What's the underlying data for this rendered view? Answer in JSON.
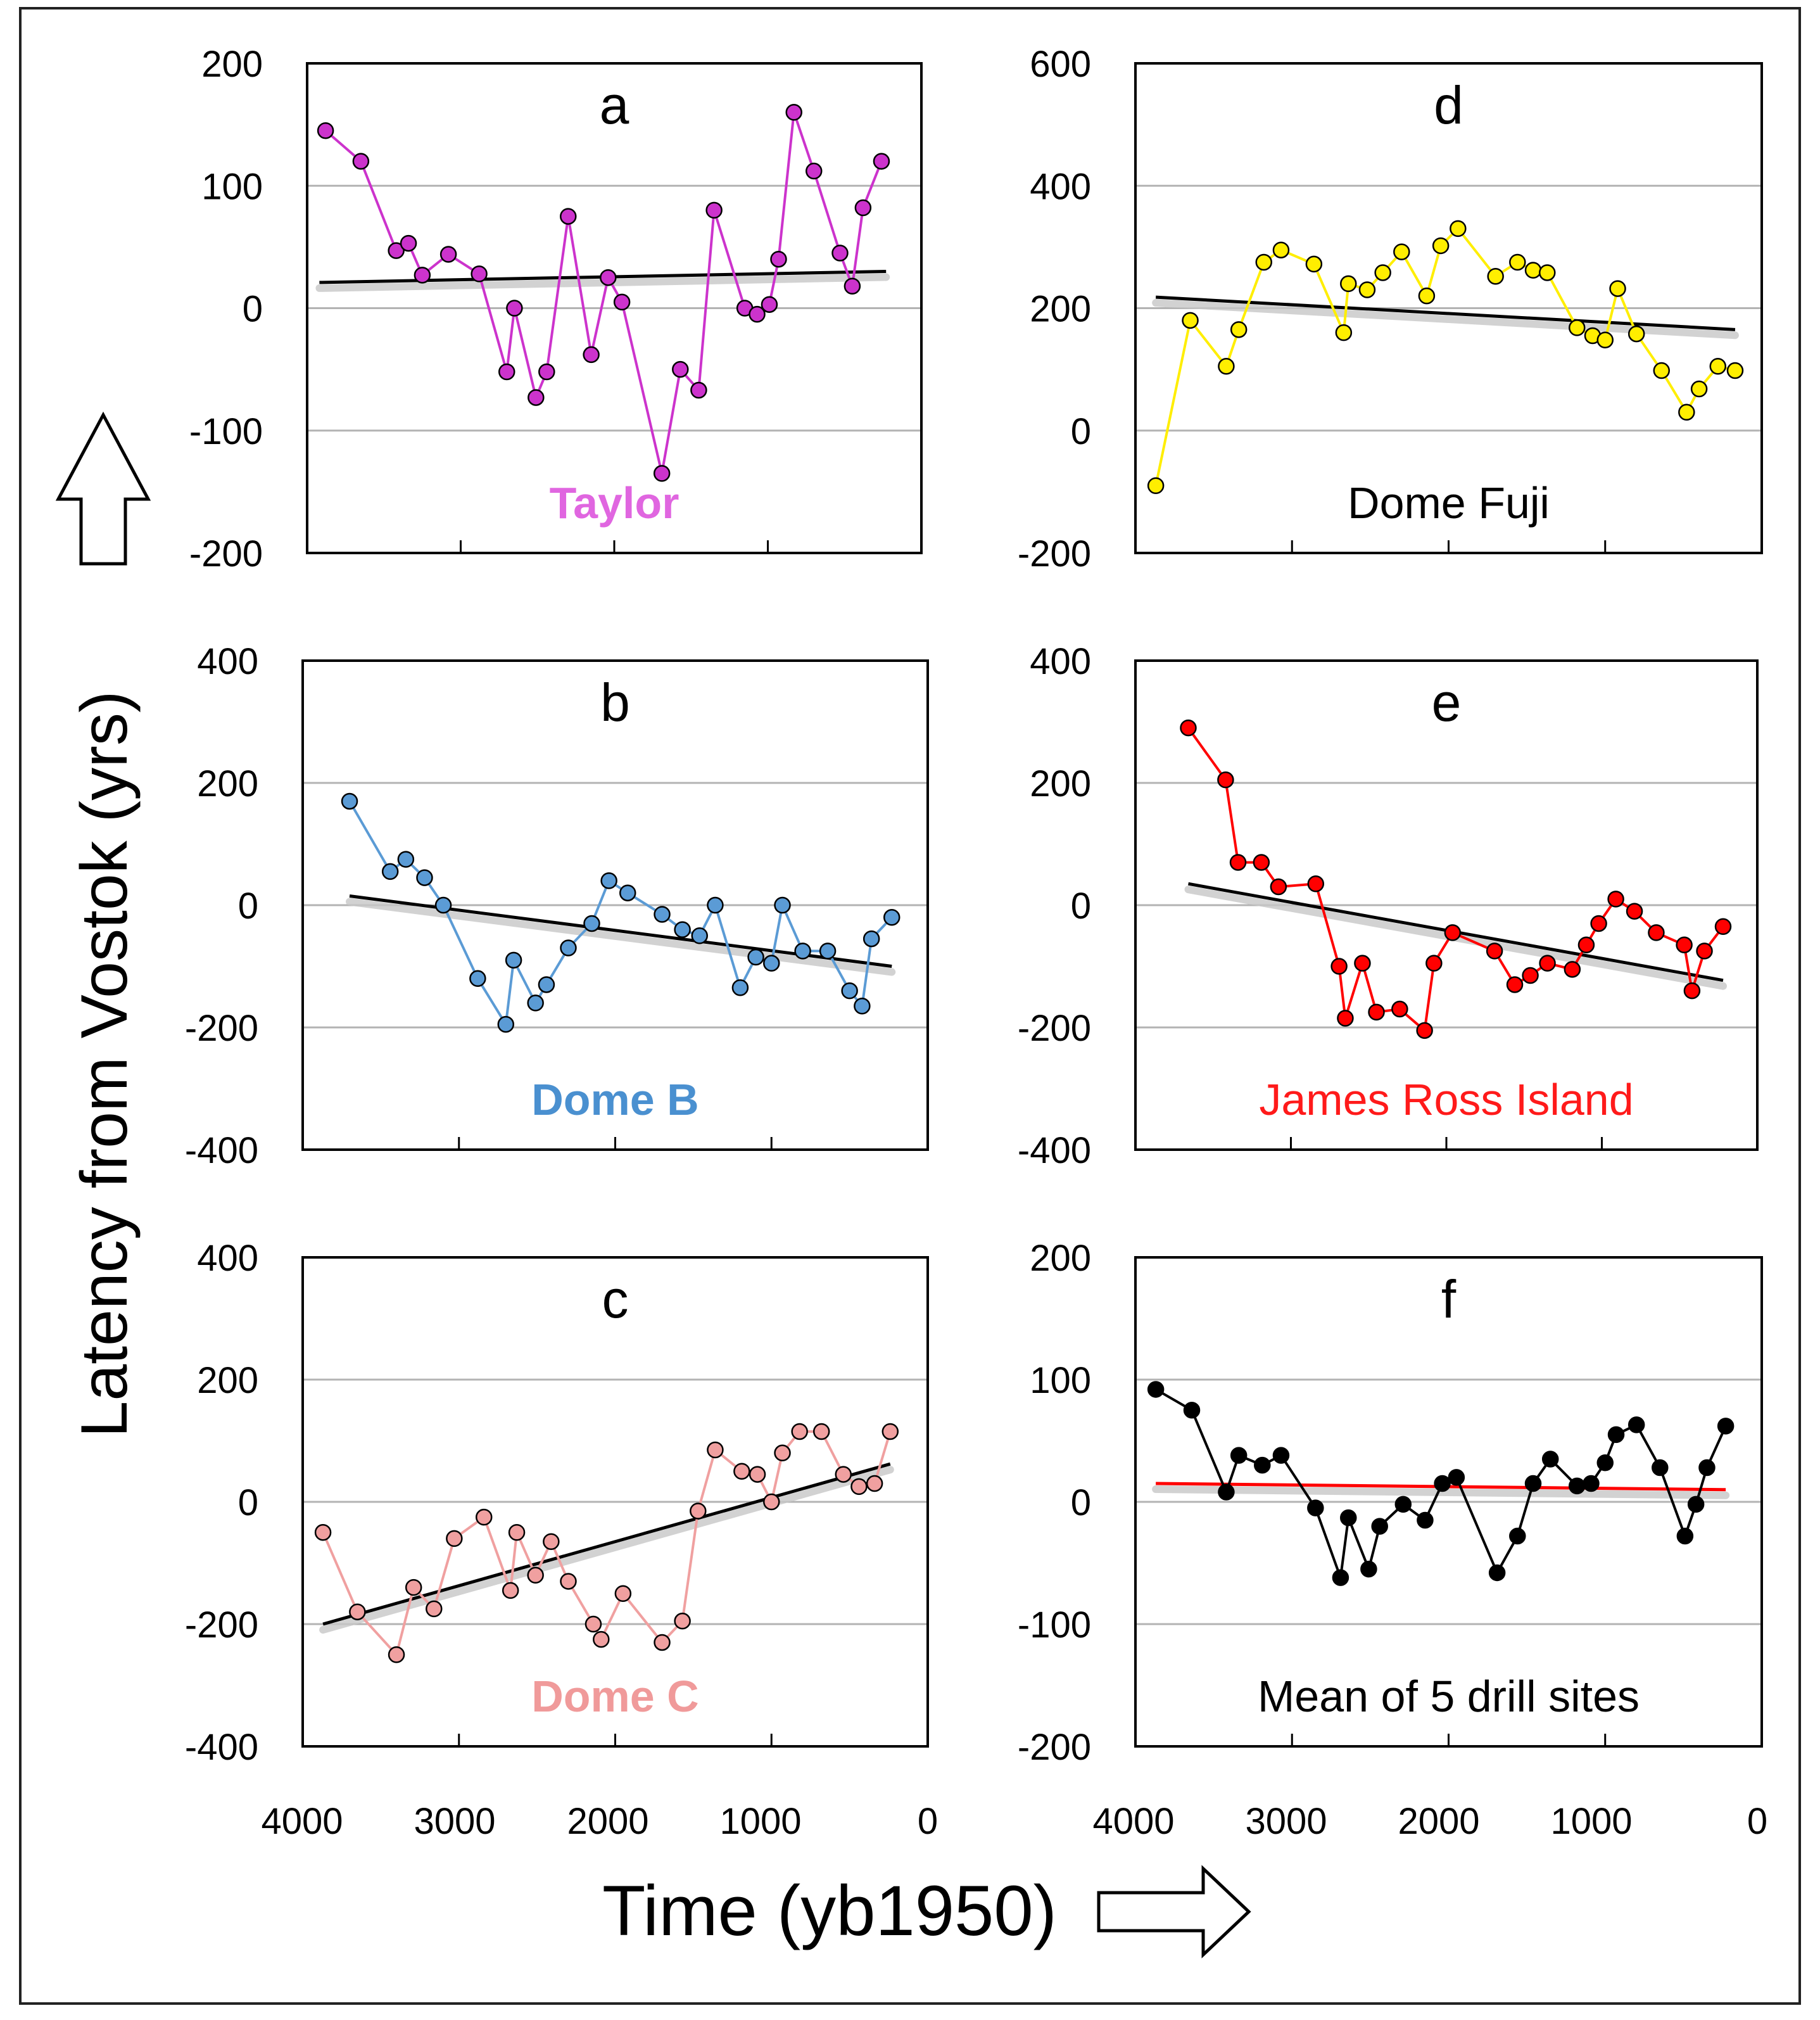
{
  "figure": {
    "ylabel": "Latency from Vostok  (yrs)",
    "xlabel": "Time (yb1950)",
    "x_ticks": [
      "4000",
      "3000",
      "2000",
      "1000",
      "0"
    ]
  },
  "chart_data": [
    {
      "id": "a",
      "type": "line",
      "panel_letter": "a",
      "site_label": "Taylor",
      "color": "#cc33cc",
      "label_color": "#e066e0",
      "trend_color": "#000000",
      "xlim": [
        4000,
        0
      ],
      "ylim": [
        -200,
        200
      ],
      "yticks": [
        "200",
        "100",
        "0",
        "-100",
        "-200"
      ],
      "grid": true,
      "label_position": "bottom",
      "x": [
        3880,
        3650,
        3420,
        3340,
        3250,
        3080,
        2880,
        2700,
        2650,
        2510,
        2440,
        2300,
        2150,
        2040,
        1950,
        1690,
        1570,
        1450,
        1350,
        1150,
        1070,
        990,
        930,
        830,
        700,
        530,
        450,
        380,
        260
      ],
      "y": [
        145,
        120,
        47,
        53,
        27,
        44,
        28,
        -52,
        0,
        -73,
        -52,
        75,
        -38,
        25,
        5,
        -135,
        -50,
        -67,
        80,
        0,
        -5,
        3,
        40,
        160,
        112,
        45,
        18,
        82,
        120
      ],
      "trend": {
        "x": [
          3920,
          230
        ],
        "y": [
          21,
          30
        ]
      }
    },
    {
      "id": "b",
      "type": "line",
      "panel_letter": "b",
      "site_label": "Dome B",
      "color": "#5b9bd5",
      "label_color": "#4a90d0",
      "trend_color": "#000000",
      "xlim": [
        4000,
        0
      ],
      "ylim": [
        -400,
        400
      ],
      "yticks": [
        "400",
        "200",
        "0",
        "-200",
        "-400"
      ],
      "grid": true,
      "label_position": "bottom",
      "x": [
        3700,
        3440,
        3340,
        3220,
        3100,
        2880,
        2700,
        2650,
        2510,
        2440,
        2300,
        2150,
        2040,
        1920,
        1700,
        1570,
        1460,
        1360,
        1200,
        1100,
        1000,
        930,
        800,
        640,
        500,
        420,
        360,
        230
      ],
      "y": [
        170,
        55,
        75,
        45,
        0,
        -120,
        -195,
        -90,
        -160,
        -130,
        -70,
        -30,
        40,
        20,
        -15,
        -40,
        -50,
        0,
        -135,
        -85,
        -95,
        0,
        -75,
        -75,
        -140,
        -165,
        -55,
        -20
      ],
      "trend": {
        "x": [
          3700,
          230
        ],
        "y": [
          15,
          -100
        ]
      }
    },
    {
      "id": "c",
      "type": "line",
      "panel_letter": "c",
      "site_label": "Dome C",
      "color": "#f0a0a0",
      "label_color": "#f09a9a",
      "trend_color": "#000000",
      "xlim": [
        4000,
        0
      ],
      "ylim": [
        -400,
        400
      ],
      "yticks": [
        "400",
        "200",
        "0",
        "-200",
        "-400"
      ],
      "grid": true,
      "label_position": "bottom",
      "x": [
        3870,
        3650,
        3400,
        3290,
        3160,
        3030,
        2840,
        2670,
        2630,
        2510,
        2410,
        2300,
        2140,
        2090,
        1950,
        1700,
        1570,
        1470,
        1360,
        1190,
        1090,
        1000,
        930,
        820,
        680,
        540,
        440,
        340,
        240
      ],
      "y": [
        -50,
        -180,
        -250,
        -140,
        -175,
        -60,
        -25,
        -145,
        -50,
        -120,
        -65,
        -130,
        -200,
        -225,
        -150,
        -230,
        -195,
        -15,
        85,
        50,
        45,
        0,
        80,
        115,
        115,
        45,
        25,
        30,
        115
      ],
      "trend": {
        "x": [
          3870,
          240
        ],
        "y": [
          -200,
          62
        ]
      }
    },
    {
      "id": "d",
      "type": "line",
      "panel_letter": "d",
      "site_label": "Dome Fuji",
      "color": "#ffee00",
      "label_color": "#000000",
      "trend_color": "#000000",
      "xlim": [
        4000,
        0
      ],
      "ylim": [
        -200,
        600
      ],
      "yticks": [
        "600",
        "400",
        "200",
        "0",
        "-200"
      ],
      "grid": true,
      "label_position": "bottom",
      "x": [
        3870,
        3650,
        3420,
        3340,
        3180,
        3070,
        2860,
        2670,
        2640,
        2520,
        2420,
        2300,
        2140,
        2050,
        1940,
        1700,
        1560,
        1460,
        1370,
        1180,
        1080,
        1000,
        920,
        800,
        640,
        480,
        400,
        280,
        170
      ],
      "y": [
        -90,
        180,
        105,
        165,
        275,
        295,
        272,
        160,
        240,
        230,
        258,
        292,
        220,
        302,
        330,
        252,
        275,
        262,
        258,
        168,
        155,
        148,
        232,
        158,
        98,
        30,
        68,
        105,
        98
      ],
      "trend": {
        "x": [
          3870,
          170
        ],
        "y": [
          218,
          165
        ]
      }
    },
    {
      "id": "e",
      "type": "line",
      "panel_letter": "e",
      "site_label": "James Ross Island",
      "color": "#ff0000",
      "label_color": "#ff1a1a",
      "trend_color": "#000000",
      "xlim": [
        4000,
        0
      ],
      "ylim": [
        -400,
        400
      ],
      "yticks": [
        "400",
        "200",
        "0",
        "-200",
        "-400"
      ],
      "grid": true,
      "label_position": "bottom",
      "x": [
        3660,
        3420,
        3340,
        3190,
        3080,
        2840,
        2690,
        2650,
        2540,
        2450,
        2300,
        2140,
        2080,
        1960,
        1690,
        1560,
        1460,
        1350,
        1190,
        1100,
        1020,
        910,
        790,
        650,
        470,
        420,
        340,
        220
      ],
      "y": [
        290,
        205,
        70,
        70,
        30,
        35,
        -100,
        -185,
        -95,
        -175,
        -170,
        -205,
        -95,
        -45,
        -75,
        -130,
        -115,
        -95,
        -105,
        -65,
        -30,
        10,
        -10,
        -45,
        -65,
        -140,
        -75,
        -35
      ],
      "trend": {
        "x": [
          3660,
          220
        ],
        "y": [
          35,
          -123
        ]
      }
    },
    {
      "id": "f",
      "type": "line",
      "panel_letter": "f",
      "site_label": "Mean of 5 drill sites",
      "color": "#000000",
      "label_color": "#000000",
      "trend_color": "#ff0000",
      "xlim": [
        4000,
        0
      ],
      "ylim": [
        -200,
        200
      ],
      "yticks": [
        "200",
        "100",
        "0",
        "-100",
        "-200"
      ],
      "grid": true,
      "label_position": "bottom",
      "x": [
        3870,
        3640,
        3420,
        3340,
        3190,
        3070,
        2850,
        2690,
        2640,
        2510,
        2440,
        2290,
        2150,
        2040,
        1950,
        1690,
        1560,
        1460,
        1350,
        1180,
        1090,
        1000,
        930,
        800,
        650,
        490,
        420,
        350,
        230
      ],
      "y": [
        92,
        75,
        8,
        38,
        30,
        38,
        -5,
        -62,
        -13,
        -55,
        -20,
        -2,
        -15,
        15,
        20,
        -58,
        -28,
        15,
        35,
        13,
        15,
        32,
        55,
        63,
        28,
        -28,
        -2,
        28,
        62
      ],
      "trend": {
        "x": [
          3870,
          230
        ],
        "y": [
          15,
          10
        ]
      }
    }
  ]
}
